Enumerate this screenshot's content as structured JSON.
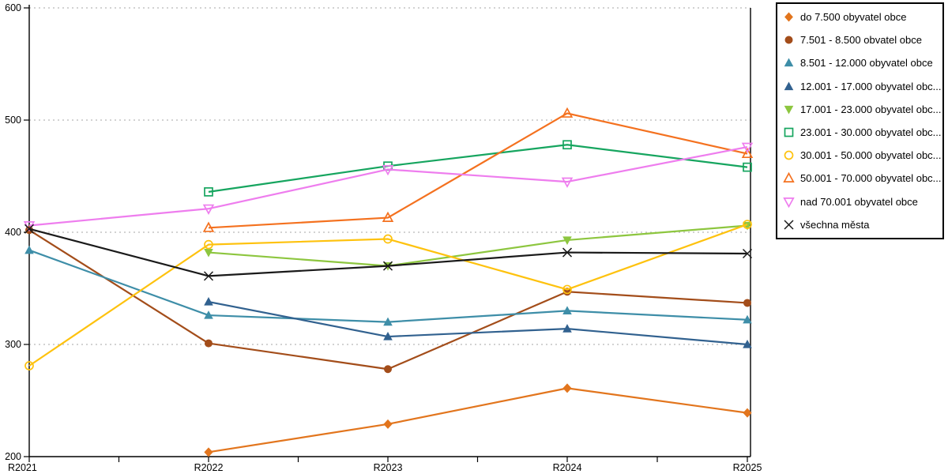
{
  "chart_data": {
    "type": "line",
    "title": "",
    "xlabel": "",
    "ylabel": "",
    "categories": [
      "R2021",
      "R2022",
      "R2023",
      "R2024",
      "R2025"
    ],
    "ylim": [
      200,
      600
    ],
    "yticks": [
      200,
      300,
      400,
      500,
      600
    ],
    "grid": "horizontal dotted at 300/400/500/600",
    "legend_position": "top-right",
    "axis_color": "#000000",
    "gridline_color": "#b8b8b8",
    "series": [
      {
        "label": "do 7.500 obyvatel obce",
        "color": "#e2751d",
        "marker": "diamond",
        "hollow": false,
        "values": [
          null,
          204,
          229,
          261,
          239
        ]
      },
      {
        "label": "7.501 - 8.500 obvatel obce",
        "color": "#a34d1a",
        "marker": "circle",
        "hollow": false,
        "values": [
          402,
          301,
          278,
          347,
          337
        ]
      },
      {
        "label": "8.501 - 12.000 obyvatel obce",
        "color": "#3e8ea8",
        "marker": "triangle-up",
        "hollow": false,
        "values": [
          384,
          326,
          320,
          330,
          322
        ]
      },
      {
        "label": "12.001 - 17.000 obyvatel obc...",
        "color": "#31618f",
        "marker": "triangle-up",
        "hollow": false,
        "values": [
          null,
          338,
          307,
          314,
          300
        ]
      },
      {
        "label": "17.001 - 23.000 obyvatel obc...",
        "color": "#8dc63f",
        "marker": "triangle-down",
        "hollow": false,
        "values": [
          null,
          382,
          370,
          393,
          406
        ]
      },
      {
        "label": "23.001 - 30.000 obyvatel obc...",
        "color": "#16a55f",
        "marker": "square",
        "hollow": true,
        "values": [
          null,
          436,
          459,
          478,
          458
        ]
      },
      {
        "label": "30.001 - 50.000 obyvatel obc...",
        "color": "#fec20e",
        "marker": "circle",
        "hollow": true,
        "values": [
          281,
          389,
          394,
          349,
          407
        ]
      },
      {
        "label": "50.001 - 70.000 obyvatel obc...",
        "color": "#f4711f",
        "marker": "triangle-up",
        "hollow": true,
        "values": [
          null,
          404,
          413,
          506,
          470
        ]
      },
      {
        "label": "nad 70.001 obyvatel obce",
        "color": "#ee7dee",
        "marker": "triangle-down",
        "hollow": true,
        "values": [
          406,
          421,
          456,
          445,
          476
        ]
      },
      {
        "label": "všechna města",
        "color": "#1a1a1a",
        "marker": "x",
        "hollow": false,
        "values": [
          403,
          361,
          370,
          382,
          381
        ]
      }
    ]
  }
}
